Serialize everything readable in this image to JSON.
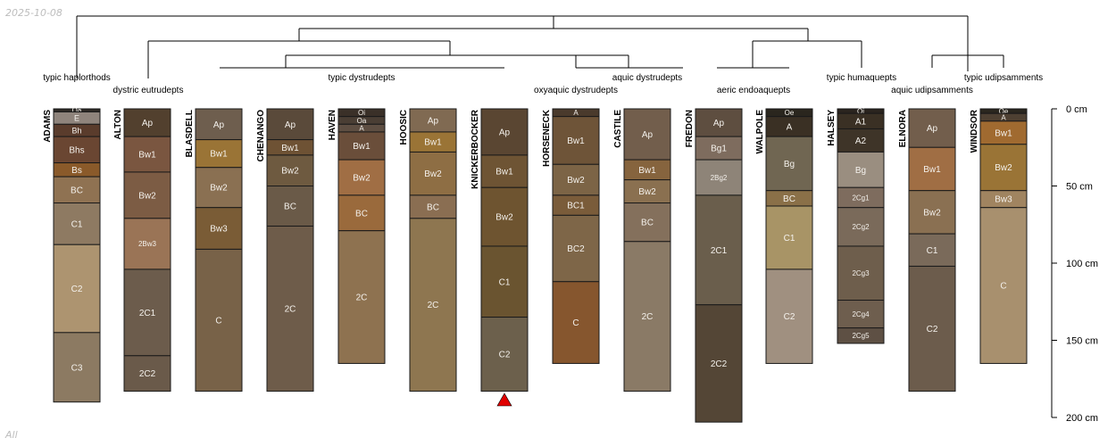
{
  "date_label": "2025-10-08",
  "footer_label": "All",
  "chart_data": {
    "type": "soil-profile-sketch",
    "depth_unit": "cm",
    "depth_axis_ticks": [
      {
        "depth": 0,
        "label": "0 cm"
      },
      {
        "depth": 50,
        "label": "50 cm"
      },
      {
        "depth": 100,
        "label": "100 cm"
      },
      {
        "depth": 150,
        "label": "150 cm"
      },
      {
        "depth": 200,
        "label": "200 cm"
      }
    ],
    "subgroup_labels": [
      "typic haplorthods",
      "dystric eutrudepts",
      "typic dystrudepts",
      "aquic dystrudepts",
      "oxyaquic dystrudepts",
      "aeric endoaquepts",
      "typic humaquepts",
      "aquic udipsamments",
      "typic udipsamments"
    ],
    "profiles": [
      {
        "name": "ADAMS",
        "horizons": [
          {
            "name": "Oa",
            "top": 0,
            "bottom": 2,
            "color": "#2e2a26"
          },
          {
            "name": "E",
            "top": 2,
            "bottom": 10,
            "color": "#8f847c"
          },
          {
            "name": "Bh",
            "top": 10,
            "bottom": 18,
            "color": "#5a3c2c"
          },
          {
            "name": "Bhs",
            "top": 18,
            "bottom": 35,
            "color": "#6a4632"
          },
          {
            "name": "Bs",
            "top": 35,
            "bottom": 44,
            "color": "#8a5a2a"
          },
          {
            "name": "BC",
            "top": 44,
            "bottom": 61,
            "color": "#8f7252"
          },
          {
            "name": "C1",
            "top": 61,
            "bottom": 88,
            "color": "#8e7a62"
          },
          {
            "name": "C2",
            "top": 88,
            "bottom": 145,
            "color": "#ad9470"
          },
          {
            "name": "C3",
            "top": 145,
            "bottom": 190,
            "color": "#8c7a62"
          }
        ]
      },
      {
        "name": "ALTON",
        "horizons": [
          {
            "name": "Ap",
            "top": 0,
            "bottom": 18,
            "color": "#52402e"
          },
          {
            "name": "Bw1",
            "top": 18,
            "bottom": 41,
            "color": "#7a5640"
          },
          {
            "name": "Bw2",
            "top": 41,
            "bottom": 71,
            "color": "#7c5c44"
          },
          {
            "name": "2Bw3",
            "top": 71,
            "bottom": 104,
            "color": "#9a7456"
          },
          {
            "name": "2C1",
            "top": 104,
            "bottom": 160,
            "color": "#6c5c4c"
          },
          {
            "name": "2C2",
            "top": 160,
            "bottom": 183,
            "color": "#6a5a4a"
          }
        ]
      },
      {
        "name": "BLASDELL",
        "horizons": [
          {
            "name": "Ap",
            "top": 0,
            "bottom": 20,
            "color": "#6e5e4e"
          },
          {
            "name": "Bw1",
            "top": 20,
            "bottom": 38,
            "color": "#9a7436"
          },
          {
            "name": "Bw2",
            "top": 38,
            "bottom": 64,
            "color": "#8a7052"
          },
          {
            "name": "Bw3",
            "top": 64,
            "bottom": 91,
            "color": "#7a5c36"
          },
          {
            "name": "C",
            "top": 91,
            "bottom": 183,
            "color": "#786248"
          }
        ]
      },
      {
        "name": "CHENANGO",
        "horizons": [
          {
            "name": "Ap",
            "top": 0,
            "bottom": 20,
            "color": "#5a4a3a"
          },
          {
            "name": "Bw1",
            "top": 20,
            "bottom": 30,
            "color": "#6e5234"
          },
          {
            "name": "Bw2",
            "top": 30,
            "bottom": 50,
            "color": "#6e5a40"
          },
          {
            "name": "BC",
            "top": 50,
            "bottom": 76,
            "color": "#6a5a48"
          },
          {
            "name": "2C",
            "top": 76,
            "bottom": 183,
            "color": "#6e5c4a"
          }
        ]
      },
      {
        "name": "HAVEN",
        "horizons": [
          {
            "name": "Oi",
            "top": 0,
            "bottom": 5,
            "color": "#3a3028"
          },
          {
            "name": "Oa",
            "top": 5,
            "bottom": 10,
            "color": "#4a3e34"
          },
          {
            "name": "A",
            "top": 10,
            "bottom": 15,
            "color": "#5e4e42"
          },
          {
            "name": "Bw1",
            "top": 15,
            "bottom": 33,
            "color": "#6a4e3a"
          },
          {
            "name": "Bw2",
            "top": 33,
            "bottom": 56,
            "color": "#a06e44"
          },
          {
            "name": "BC",
            "top": 56,
            "bottom": 79,
            "color": "#9a6a3c"
          },
          {
            "name": "2C",
            "top": 79,
            "bottom": 165,
            "color": "#8e7250"
          }
        ]
      },
      {
        "name": "HOOSIC",
        "horizons": [
          {
            "name": "Ap",
            "top": 0,
            "bottom": 15,
            "color": "#806a52"
          },
          {
            "name": "Bw1",
            "top": 15,
            "bottom": 28,
            "color": "#9a7436"
          },
          {
            "name": "Bw2",
            "top": 28,
            "bottom": 56,
            "color": "#8e6e44"
          },
          {
            "name": "BC",
            "top": 56,
            "bottom": 71,
            "color": "#8a6e52"
          },
          {
            "name": "2C",
            "top": 71,
            "bottom": 183,
            "color": "#8e7650"
          }
        ]
      },
      {
        "name": "KNICKERBOCKER",
        "horizons": [
          {
            "name": "Ap",
            "top": 0,
            "bottom": 30,
            "color": "#5a4632"
          },
          {
            "name": "Bw1",
            "top": 30,
            "bottom": 51,
            "color": "#6e5434"
          },
          {
            "name": "Bw2",
            "top": 51,
            "bottom": 89,
            "color": "#6e5430"
          },
          {
            "name": "C1",
            "top": 89,
            "bottom": 135,
            "color": "#6a5430"
          },
          {
            "name": "C2",
            "top": 135,
            "bottom": 183,
            "color": "#6c604c"
          }
        ]
      },
      {
        "name": "HORSENECK",
        "horizons": [
          {
            "name": "A",
            "top": 0,
            "bottom": 5,
            "color": "#4a3a2c"
          },
          {
            "name": "Bw1",
            "top": 5,
            "bottom": 36,
            "color": "#6e5438"
          },
          {
            "name": "Bw2",
            "top": 36,
            "bottom": 56,
            "color": "#7c6446"
          },
          {
            "name": "BC1",
            "top": 56,
            "bottom": 69,
            "color": "#7a5c3a"
          },
          {
            "name": "BC2",
            "top": 69,
            "bottom": 112,
            "color": "#7e6648"
          },
          {
            "name": "C",
            "top": 112,
            "bottom": 165,
            "color": "#86562e"
          }
        ]
      },
      {
        "name": "CASTILE",
        "horizons": [
          {
            "name": "Ap",
            "top": 0,
            "bottom": 33,
            "color": "#725e4c"
          },
          {
            "name": "Bw1",
            "top": 33,
            "bottom": 46,
            "color": "#86643e"
          },
          {
            "name": "Bw2",
            "top": 46,
            "bottom": 61,
            "color": "#8a7050"
          },
          {
            "name": "BC",
            "top": 61,
            "bottom": 86,
            "color": "#84705c"
          },
          {
            "name": "2C",
            "top": 86,
            "bottom": 183,
            "color": "#8a7a66"
          }
        ]
      },
      {
        "name": "FREDON",
        "horizons": [
          {
            "name": "Ap",
            "top": 0,
            "bottom": 18,
            "color": "#5e4e40"
          },
          {
            "name": "Bg1",
            "top": 18,
            "bottom": 33,
            "color": "#7e6c5e"
          },
          {
            "name": "2Bg2",
            "top": 33,
            "bottom": 56,
            "color": "#8e8478"
          },
          {
            "name": "2C1",
            "top": 56,
            "bottom": 127,
            "color": "#6a5e4c"
          },
          {
            "name": "2C2",
            "top": 127,
            "bottom": 203,
            "color": "#544636"
          }
        ]
      },
      {
        "name": "WALPOLE",
        "horizons": [
          {
            "name": "Oe",
            "top": 0,
            "bottom": 5,
            "color": "#2a261e"
          },
          {
            "name": "A",
            "top": 5,
            "bottom": 18,
            "color": "#3a3024"
          },
          {
            "name": "Bg",
            "top": 18,
            "bottom": 53,
            "color": "#706652"
          },
          {
            "name": "BC",
            "top": 53,
            "bottom": 63,
            "color": "#8a7048"
          },
          {
            "name": "C1",
            "top": 63,
            "bottom": 104,
            "color": "#a89466"
          },
          {
            "name": "C2",
            "top": 104,
            "bottom": 165,
            "color": "#a09080"
          }
        ]
      },
      {
        "name": "HALSEY",
        "horizons": [
          {
            "name": "Oi",
            "top": 0,
            "bottom": 3,
            "color": "#2a241e"
          },
          {
            "name": "A1",
            "top": 3,
            "bottom": 13,
            "color": "#3a3024"
          },
          {
            "name": "A2",
            "top": 13,
            "bottom": 28,
            "color": "#3e3428"
          },
          {
            "name": "Bg",
            "top": 28,
            "bottom": 51,
            "color": "#9a8e80"
          },
          {
            "name": "2Cg1",
            "top": 51,
            "bottom": 64,
            "color": "#7e6c5e"
          },
          {
            "name": "2Cg2",
            "top": 64,
            "bottom": 89,
            "color": "#7a6a5a"
          },
          {
            "name": "2Cg3",
            "top": 89,
            "bottom": 124,
            "color": "#6e5e4c"
          },
          {
            "name": "2Cg4",
            "top": 124,
            "bottom": 142,
            "color": "#6e5e4e"
          },
          {
            "name": "2Cg5",
            "top": 142,
            "bottom": 152,
            "color": "#5e5044"
          }
        ]
      },
      {
        "name": "ELNORA",
        "horizons": [
          {
            "name": "Ap",
            "top": 0,
            "bottom": 25,
            "color": "#725e4c"
          },
          {
            "name": "Bw1",
            "top": 25,
            "bottom": 53,
            "color": "#a06e44"
          },
          {
            "name": "Bw2",
            "top": 53,
            "bottom": 81,
            "color": "#8a7052"
          },
          {
            "name": "C1",
            "top": 81,
            "bottom": 102,
            "color": "#7a6a5a"
          },
          {
            "name": "C2",
            "top": 102,
            "bottom": 183,
            "color": "#6c5c4c"
          }
        ]
      },
      {
        "name": "WINDSOR",
        "horizons": [
          {
            "name": "Oe",
            "top": 0,
            "bottom": 3,
            "color": "#2a261e"
          },
          {
            "name": "A",
            "top": 3,
            "bottom": 8,
            "color": "#4e4032"
          },
          {
            "name": "Bw1",
            "top": 8,
            "bottom": 23,
            "color": "#a06a30"
          },
          {
            "name": "Bw2",
            "top": 23,
            "bottom": 53,
            "color": "#9a7436"
          },
          {
            "name": "Bw3",
            "top": 53,
            "bottom": 64,
            "color": "#a08460"
          },
          {
            "name": "C",
            "top": 64,
            "bottom": 165,
            "color": "#a8906e"
          }
        ]
      }
    ],
    "marker": {
      "profile": "KNICKERBOCKER",
      "shape": "triangle",
      "color": "#e00000"
    }
  }
}
